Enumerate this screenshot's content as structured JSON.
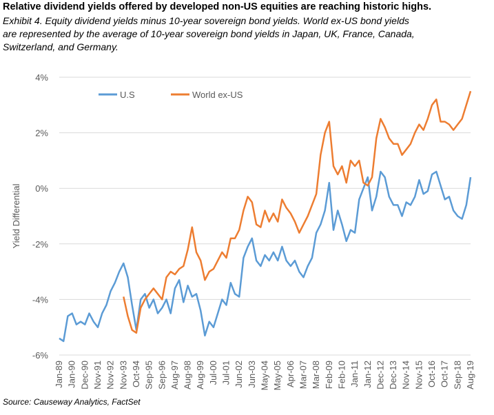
{
  "chart_data": {
    "type": "line",
    "title": "Relative dividend yields offered by developed non-US equities are reaching historic highs.",
    "subtitle": "Exhibit 4.  Equity dividend yields minus 10-year sovereign bond yields. World ex-US bond yields are represented by the average of 10-year sovereign bond yields in Japan, UK, France, Canada, Switzerland, and Germany.",
    "y_label": "Yield Differential",
    "source": "Source: Causeway Analytics, FactSet",
    "legend": "top-left",
    "grid": true,
    "ylim": [
      -6,
      4
    ],
    "yticks": [
      {
        "value": -6,
        "label": "-6%"
      },
      {
        "value": -4,
        "label": "-4%"
      },
      {
        "value": -2,
        "label": "-2%"
      },
      {
        "value": 0,
        "label": "0%"
      },
      {
        "value": 2,
        "label": "2%"
      },
      {
        "value": 4,
        "label": "4%"
      }
    ],
    "categories": [
      "Jan-89",
      null,
      null,
      "Jan-90",
      null,
      null,
      "Dec-90",
      null,
      null,
      "Nov-91",
      null,
      null,
      "Nov-92",
      null,
      null,
      "Nov-93",
      null,
      null,
      "Oct-94",
      null,
      null,
      "Sep-95",
      null,
      null,
      "Sep-96",
      null,
      null,
      "Aug-97",
      null,
      null,
      "Aug-98",
      null,
      null,
      "Aug-99",
      null,
      null,
      "Jul-00",
      null,
      null,
      "Jul-01",
      null,
      null,
      "Jun-02",
      null,
      null,
      "Jun-03",
      null,
      null,
      "May-04",
      null,
      null,
      "May-05",
      null,
      null,
      "Apr-06",
      null,
      null,
      "Mar-07",
      null,
      null,
      "Mar-08",
      null,
      null,
      "Feb-09",
      null,
      null,
      "Feb-10",
      null,
      null,
      "Jan-11",
      null,
      null,
      "Jan-12",
      null,
      null,
      "Dec-12",
      null,
      null,
      "Dec-13",
      null,
      null,
      "Nov-14",
      null,
      null,
      "Nov-15",
      null,
      null,
      "Oct-16",
      null,
      null,
      "Oct-17",
      null,
      null,
      "Sep-18",
      null,
      null,
      "Aug-19"
    ],
    "series": [
      {
        "name": "U.S",
        "color": "#5b9bd5",
        "values": [
          -5.4,
          -5.5,
          -4.6,
          -4.5,
          -4.9,
          -4.8,
          -4.9,
          -4.5,
          -4.8,
          -5.0,
          -4.5,
          -4.2,
          -3.7,
          -3.4,
          -3.0,
          -2.7,
          -3.2,
          -4.2,
          -5.1,
          -4.0,
          -3.8,
          -4.3,
          -4.0,
          -4.5,
          -4.3,
          -4.0,
          -4.5,
          -3.6,
          -3.3,
          -4.1,
          -3.5,
          -3.9,
          -3.8,
          -4.4,
          -5.3,
          -4.8,
          -5.0,
          -4.5,
          -4.0,
          -4.2,
          -3.4,
          -3.8,
          -3.9,
          -2.5,
          -2.1,
          -1.8,
          -2.6,
          -2.8,
          -2.4,
          -2.6,
          -2.3,
          -2.6,
          -2.1,
          -2.6,
          -2.8,
          -2.6,
          -3.0,
          -3.2,
          -2.8,
          -2.5,
          -1.6,
          -1.3,
          -0.8,
          0.2,
          -1.5,
          -0.8,
          -1.3,
          -1.9,
          -1.5,
          -1.6,
          -0.4,
          0.0,
          0.4,
          -0.8,
          -0.3,
          0.6,
          0.4,
          -0.3,
          -0.6,
          -0.6,
          -1.0,
          -0.5,
          -0.6,
          -0.3,
          0.3,
          -0.2,
          -0.1,
          0.5,
          0.6,
          0.1,
          -0.4,
          -0.3,
          -0.8,
          -1.0,
          -1.1,
          -0.6,
          0.4
        ]
      },
      {
        "name": "World ex-US",
        "color": "#ed7d31",
        "values": [
          null,
          null,
          null,
          null,
          null,
          null,
          null,
          null,
          null,
          null,
          null,
          null,
          null,
          null,
          null,
          -3.9,
          -4.6,
          -5.1,
          -5.2,
          -4.3,
          -4.0,
          -3.8,
          -3.6,
          -3.8,
          -4.0,
          -3.2,
          -3.0,
          -3.1,
          -2.9,
          -2.8,
          -2.2,
          -1.4,
          -2.3,
          -2.6,
          -3.3,
          -3.0,
          -2.9,
          -2.6,
          -2.3,
          -2.5,
          -1.8,
          -1.8,
          -1.5,
          -0.8,
          -0.3,
          -0.5,
          -1.3,
          -1.4,
          -0.8,
          -1.2,
          -0.9,
          -1.2,
          -0.4,
          -0.7,
          -0.9,
          -1.2,
          -1.6,
          -1.3,
          -1.0,
          -0.6,
          -0.2,
          1.2,
          2.0,
          2.4,
          0.8,
          0.5,
          0.8,
          0.2,
          1.0,
          0.8,
          1.0,
          0.2,
          0.1,
          0.4,
          1.8,
          2.5,
          2.2,
          1.8,
          1.6,
          1.6,
          1.2,
          1.4,
          1.6,
          2.0,
          2.3,
          2.1,
          2.5,
          3.0,
          3.2,
          2.4,
          2.4,
          2.3,
          2.1,
          2.3,
          2.5,
          3.0,
          3.5
        ]
      }
    ]
  }
}
